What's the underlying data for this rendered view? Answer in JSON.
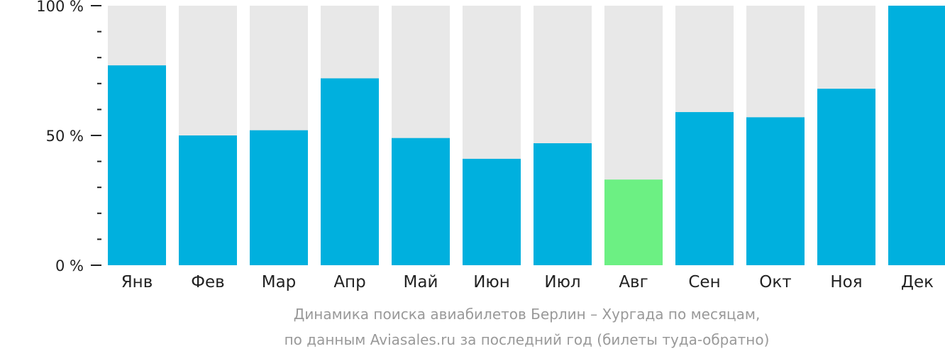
{
  "chart_data": {
    "type": "bar",
    "categories": [
      "Янв",
      "Фев",
      "Мар",
      "Апр",
      "Май",
      "Июн",
      "Июл",
      "Авг",
      "Сен",
      "Окт",
      "Ноя",
      "Дек"
    ],
    "values": [
      77,
      50,
      52,
      72,
      49,
      41,
      47,
      33,
      59,
      57,
      68,
      100
    ],
    "ylim": [
      0,
      100
    ],
    "y_ticks": [
      "0 %",
      "50 %",
      "100 %"
    ],
    "highlight_category": "Авг",
    "grid": false,
    "colors": {
      "bar": "#00b0de",
      "highlight": "#6cf083",
      "track": "#e8e8e8",
      "tick": "#222222",
      "caption": "#999999"
    }
  },
  "caption": {
    "line1": "Динамика поиска авиабилетов Берлин – Хургада по месяцам,",
    "line2": "по данным Aviasales.ru за последний год (билеты туда-обратно)"
  }
}
